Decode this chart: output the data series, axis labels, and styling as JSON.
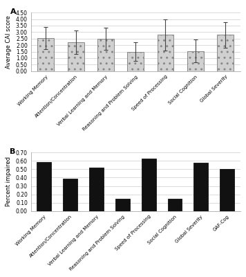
{
  "panel_a": {
    "categories": [
      "Working Memory",
      "Attention/Concentration",
      "Verbal Learning and Memory",
      "Reasoning and Problem Solving",
      "Speed of Processing",
      "Social Cognition",
      "Global Severity"
    ],
    "values": [
      2.55,
      2.2,
      2.47,
      1.5,
      2.78,
      1.55,
      2.78
    ],
    "errors": [
      0.85,
      0.9,
      0.85,
      0.7,
      1.2,
      0.9,
      1.0
    ],
    "ylabel": "Average CAI score",
    "ylim": [
      0.0,
      4.5
    ],
    "yticks": [
      0.0,
      0.5,
      1.0,
      1.5,
      2.0,
      2.5,
      3.0,
      3.5,
      4.0,
      4.5
    ],
    "yticklabels": [
      "0.00",
      "0.50",
      "1.00",
      "1.50",
      "2.00",
      "2.50",
      "3.00",
      "3.50",
      "4.00",
      "4.50"
    ],
    "label": "A"
  },
  "panel_b": {
    "categories": [
      "Working Memory",
      "Attention/Concentration",
      "Verbal Learning and Memory",
      "Reasoning and Problem Solving",
      "Speed of Processing",
      "Social Cognition",
      "Global Severity",
      "GAF-Cog"
    ],
    "values": [
      0.59,
      0.39,
      0.52,
      0.15,
      0.63,
      0.15,
      0.58,
      0.5
    ],
    "ylabel": "Percent impaired",
    "ylim": [
      0.0,
      0.7
    ],
    "yticks": [
      0.0,
      0.1,
      0.2,
      0.3,
      0.4,
      0.5,
      0.6,
      0.7
    ],
    "yticklabels": [
      "0.00",
      "0.10",
      "0.20",
      "0.30",
      "0.40",
      "0.50",
      "0.60",
      "0.70"
    ],
    "label": "B"
  },
  "bar_color_a": "#d0d0d0",
  "bar_edge_color_a": "#888888",
  "bar_color_b": "#111111",
  "hatch_a": "..",
  "background_color": "#ffffff",
  "figure_background": "#ffffff",
  "tick_fontsize": 5.5,
  "label_fontsize": 6.0,
  "category_fontsize": 5.0
}
